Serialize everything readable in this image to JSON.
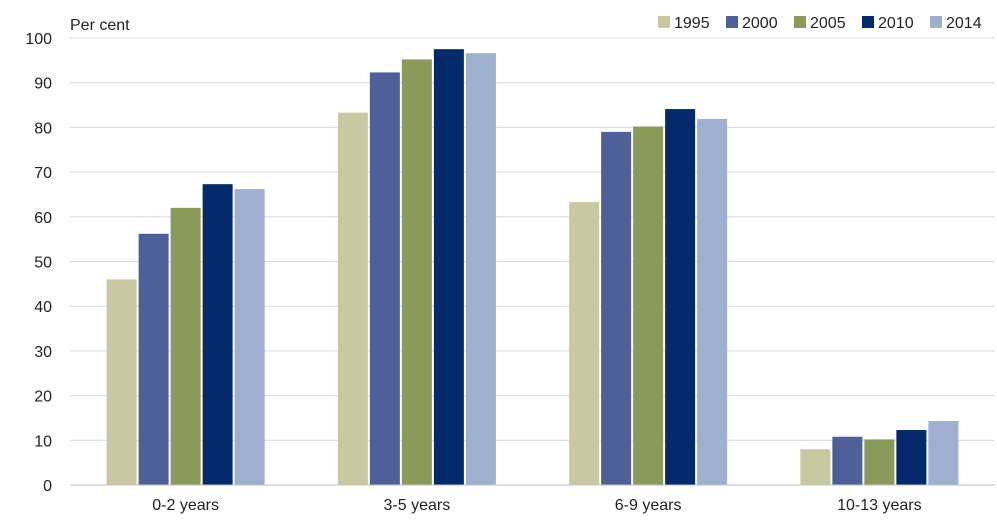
{
  "chart_data": {
    "type": "bar",
    "ylabel": "Per cent",
    "xlabel": "",
    "ylim": [
      0,
      100
    ],
    "yticks": [
      0,
      10,
      20,
      30,
      40,
      50,
      60,
      70,
      80,
      90,
      100
    ],
    "grid": true,
    "legend": "top-right",
    "categories": [
      "0-2 years",
      "3-5 years",
      "6-9 years",
      "10-13 years"
    ],
    "series": [
      {
        "name": "1995",
        "color": "#c8c9a0",
        "values": [
          46,
          83.3,
          63.3,
          8
        ]
      },
      {
        "name": "2000",
        "color": "#4f5f97",
        "values": [
          56.2,
          92.3,
          79,
          10.8
        ]
      },
      {
        "name": "2005",
        "color": "#8a9a5b",
        "values": [
          62,
          95.2,
          80.2,
          10.2
        ]
      },
      {
        "name": "2010",
        "color": "#042a6b",
        "values": [
          67.3,
          97.5,
          84.1,
          12.3
        ]
      },
      {
        "name": "2014",
        "color": "#9fafd0",
        "values": [
          66.2,
          96.6,
          81.9,
          14.3
        ]
      }
    ]
  }
}
